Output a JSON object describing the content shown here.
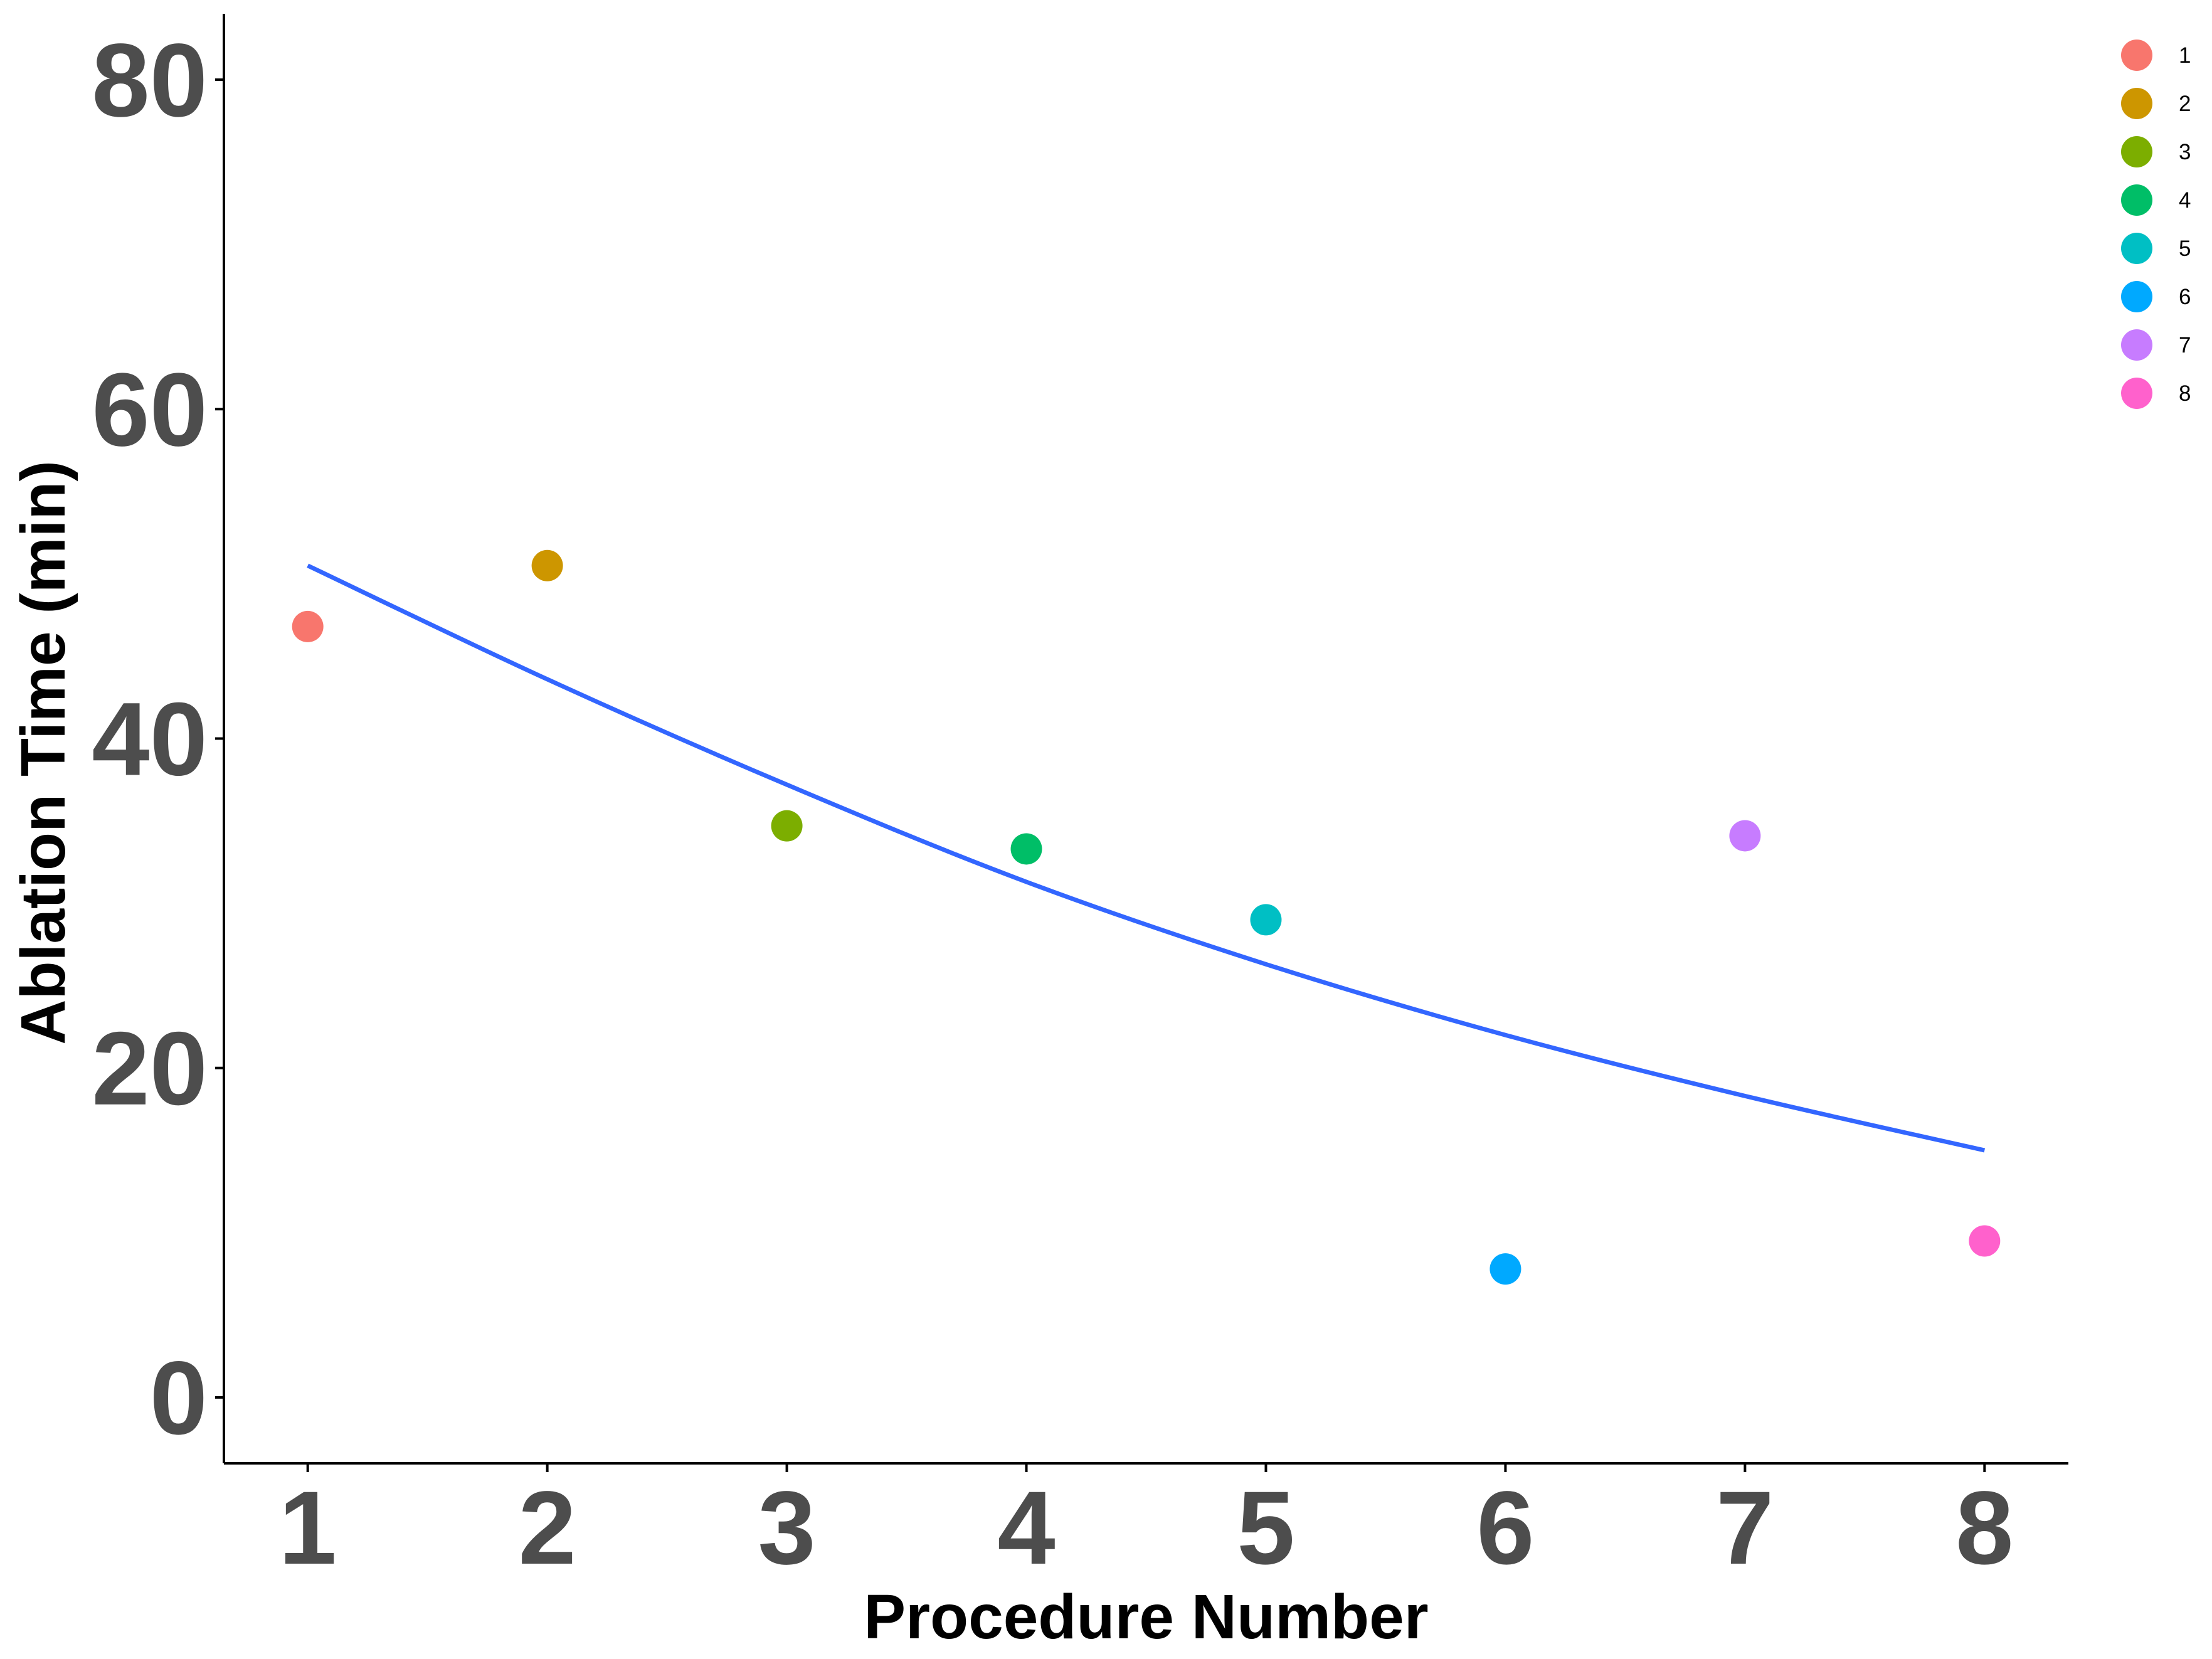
{
  "chart_data": {
    "type": "scatter",
    "title": "",
    "xlabel": "Procedure Number",
    "ylabel": "Ablation Time (min)",
    "x_ticks": [
      1,
      2,
      3,
      4,
      5,
      6,
      7,
      8
    ],
    "y_ticks": [
      0,
      20,
      40,
      60,
      80
    ],
    "xlim": [
      0.65,
      8.35
    ],
    "ylim": [
      -4,
      84
    ],
    "grid": false,
    "legend_position": "top-right",
    "points": [
      {
        "x": 1,
        "y": 46.8,
        "group": "1",
        "color": "#F8766D"
      },
      {
        "x": 2,
        "y": 50.5,
        "group": "2",
        "color": "#CD9600"
      },
      {
        "x": 3,
        "y": 34.7,
        "group": "3",
        "color": "#7CAE00"
      },
      {
        "x": 4,
        "y": 33.3,
        "group": "4",
        "color": "#00BE67"
      },
      {
        "x": 5,
        "y": 29.0,
        "group": "5",
        "color": "#00BFC4"
      },
      {
        "x": 6,
        "y": 7.8,
        "group": "6",
        "color": "#00A9FF"
      },
      {
        "x": 7,
        "y": 34.1,
        "group": "7",
        "color": "#C77CFF"
      },
      {
        "x": 8,
        "y": 9.5,
        "group": "8",
        "color": "#FF61CC"
      }
    ],
    "trend_line": {
      "color": "#3366FF",
      "x": [
        1,
        2,
        3,
        4,
        5,
        6,
        7,
        8
      ],
      "y": [
        50.5,
        43.6,
        37.2,
        31.3,
        26.3,
        22.0,
        18.3,
        15.0
      ]
    },
    "legend": [
      {
        "label": "1",
        "color": "#F8766D"
      },
      {
        "label": "2",
        "color": "#CD9600"
      },
      {
        "label": "3",
        "color": "#7CAE00"
      },
      {
        "label": "4",
        "color": "#00BE67"
      },
      {
        "label": "5",
        "color": "#00BFC4"
      },
      {
        "label": "6",
        "color": "#00A9FF"
      },
      {
        "label": "7",
        "color": "#C77CFF"
      },
      {
        "label": "8",
        "color": "#FF61CC"
      }
    ]
  }
}
